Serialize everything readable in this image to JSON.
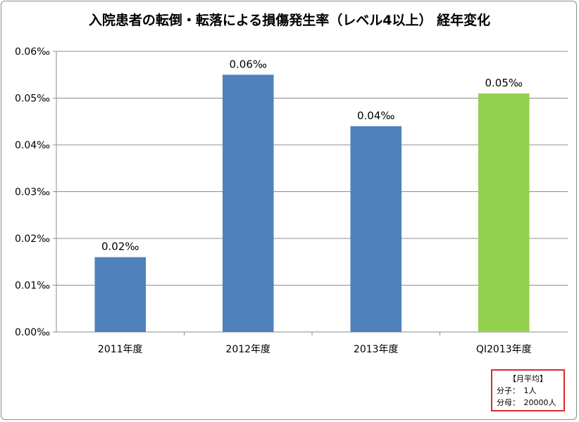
{
  "chart_data": {
    "type": "bar",
    "title": "入院患者の転倒・転落による損傷発生率（レベル4以上） 経年変化",
    "categories": [
      "2011年度",
      "2012年度",
      "2013年度",
      "QI2013年度"
    ],
    "values": [
      0.016,
      0.055,
      0.044,
      0.051
    ],
    "data_labels": [
      "0.02‰",
      "0.06‰",
      "0.04‰",
      "0.05‰"
    ],
    "bar_colors": [
      "#4f81bd",
      "#4f81bd",
      "#4f81bd",
      "#92d050"
    ],
    "ylim": [
      0,
      0.06
    ],
    "y_ticks": [
      0,
      0.01,
      0.02,
      0.03,
      0.04,
      0.05,
      0.06
    ],
    "y_tick_labels": [
      "0.00‰",
      "0.01‰",
      "0.02‰",
      "0.03‰",
      "0.04‰",
      "0.05‰",
      "0.06‰"
    ],
    "xlabel": "",
    "ylabel": "",
    "grid": true
  },
  "note": {
    "title": "【月平均】",
    "numerator": "分子：　1人",
    "denominator": "分母：　20000人"
  }
}
